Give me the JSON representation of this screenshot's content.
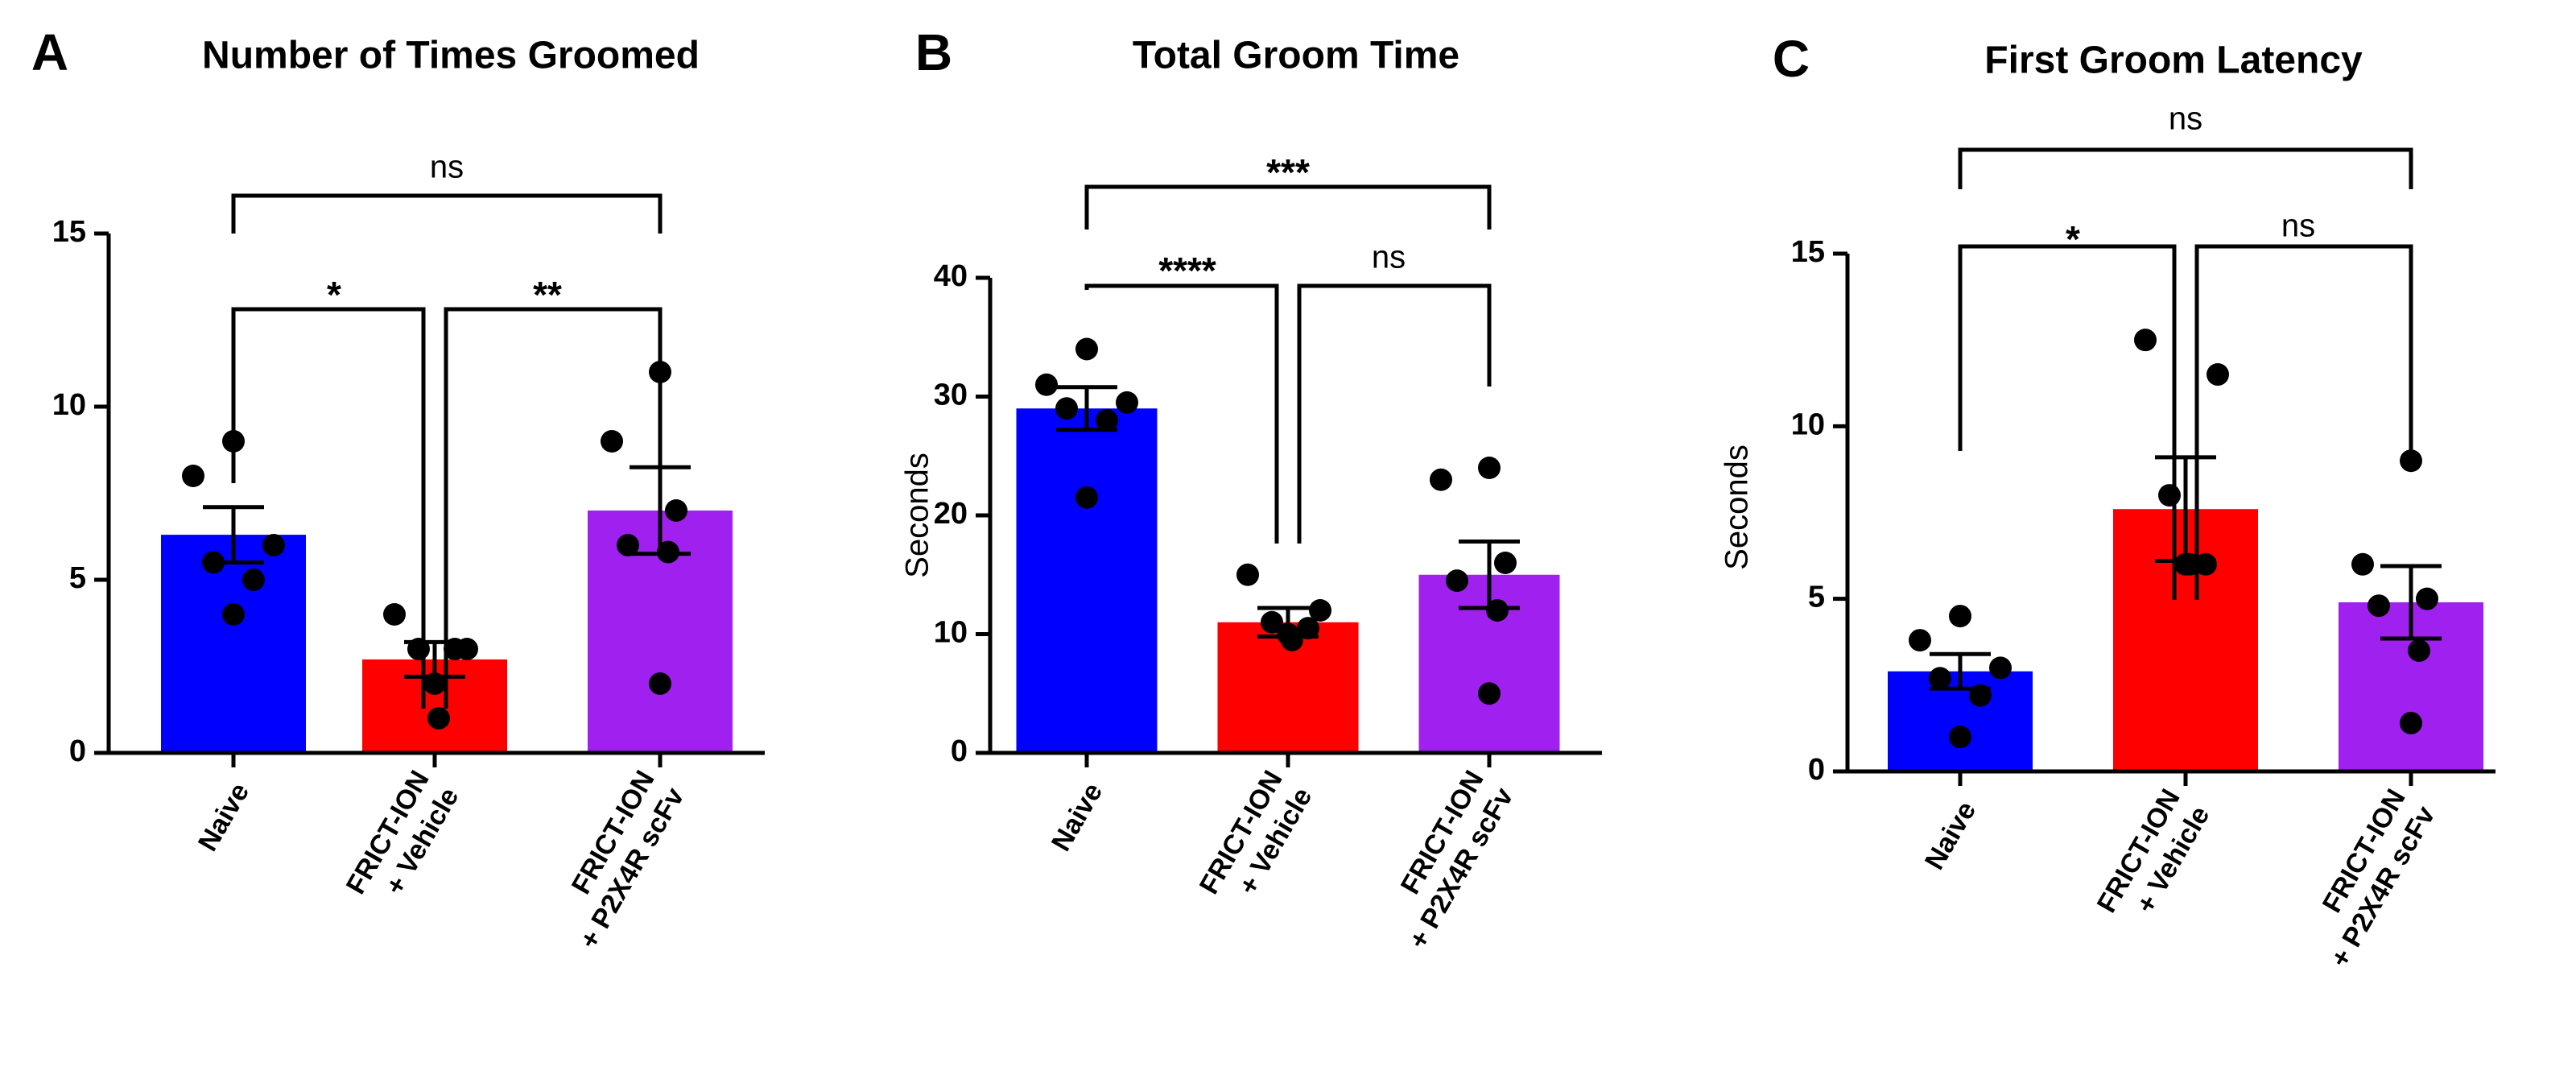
{
  "chart_data": [
    {
      "type": "bar",
      "panel": "A",
      "title": "Number of Times Groomed",
      "xlabel": "",
      "ylabel": "",
      "ylim": [
        0,
        15
      ],
      "yticks": [
        0,
        5,
        10,
        15
      ],
      "categories": [
        [
          "Naive"
        ],
        [
          "FRICT-ION",
          "+ Vehicle"
        ],
        [
          "FRICT-ION",
          "+ P2X4R scFv"
        ]
      ],
      "colors": [
        "#0000ff",
        "#ff0000",
        "#a020f0"
      ],
      "values": [
        6.3,
        2.7,
        7.0
      ],
      "sem": [
        0.8,
        0.5,
        1.25
      ],
      "points": [
        [
          9,
          8,
          6,
          5.5,
          5,
          4
        ],
        [
          4,
          3,
          3,
          3,
          2,
          1
        ],
        [
          11,
          9,
          7,
          6,
          5.8,
          2
        ]
      ],
      "comparisons": [
        {
          "from": 0,
          "to": 2,
          "label": "ns"
        },
        {
          "from": 0,
          "to": 1,
          "label": "*"
        },
        {
          "from": 1,
          "to": 2,
          "label": "**"
        }
      ]
    },
    {
      "type": "bar",
      "panel": "B",
      "title": "Total Groom Time",
      "xlabel": "",
      "ylabel": "Seconds",
      "ylim": [
        0,
        40
      ],
      "yticks": [
        0,
        10,
        20,
        30,
        40
      ],
      "categories": [
        [
          "Naive"
        ],
        [
          "FRICT-ION",
          "+ Vehicle"
        ],
        [
          "FRICT-ION",
          "+ P2X4R scFv"
        ]
      ],
      "colors": [
        "#0000ff",
        "#ff0000",
        "#a020f0"
      ],
      "values": [
        29,
        11,
        15
      ],
      "sem": [
        1.8,
        1.2,
        2.8
      ],
      "points": [
        [
          34,
          31,
          29.5,
          29,
          28,
          21.5
        ],
        [
          15,
          12,
          11,
          10.5,
          10,
          9.5
        ],
        [
          24,
          23,
          16,
          14.5,
          12,
          5
        ]
      ],
      "comparisons": [
        {
          "from": 0,
          "to": 2,
          "label": "***"
        },
        {
          "from": 0,
          "to": 1,
          "label": "****"
        },
        {
          "from": 1,
          "to": 2,
          "label": "ns"
        }
      ]
    },
    {
      "type": "bar",
      "panel": "C",
      "title": "First Groom Latency",
      "xlabel": "",
      "ylabel": "Seconds",
      "ylim": [
        0,
        15
      ],
      "yticks": [
        0,
        5,
        10,
        15
      ],
      "categories": [
        [
          "Naive"
        ],
        [
          "FRICT-ION",
          "+ Vehicle"
        ],
        [
          "FRICT-ION",
          "+ P2X4R scFv"
        ]
      ],
      "colors": [
        "#0000ff",
        "#ff0000",
        "#a020f0"
      ],
      "values": [
        2.9,
        7.6,
        4.9
      ],
      "sem": [
        0.5,
        1.5,
        1.05
      ],
      "points": [
        [
          4.5,
          3.8,
          3,
          2.7,
          2.2,
          1
        ],
        [
          12.5,
          11.5,
          8,
          6,
          6,
          6
        ],
        [
          9,
          6,
          5,
          4.8,
          3.5,
          1.4
        ]
      ],
      "comparisons": [
        {
          "from": 0,
          "to": 2,
          "label": "ns"
        },
        {
          "from": 0,
          "to": 1,
          "label": "*"
        },
        {
          "from": 1,
          "to": 2,
          "label": "ns"
        }
      ]
    }
  ]
}
